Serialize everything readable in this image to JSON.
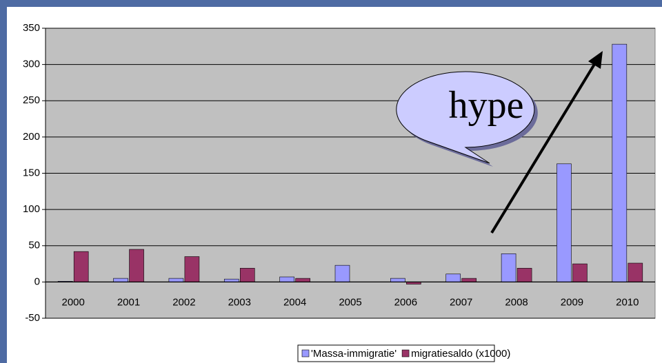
{
  "chart_data": {
    "type": "bar",
    "categories": [
      "2000",
      "2001",
      "2002",
      "2003",
      "2004",
      "2005",
      "2006",
      "2007",
      "2008",
      "2009",
      "2010"
    ],
    "series": [
      {
        "name": "'Massa-immigratie'",
        "color": "#9999ff",
        "values": [
          1,
          5,
          5,
          4,
          7,
          23,
          5,
          11,
          39,
          163,
          328
        ]
      },
      {
        "name": "migratiesaldo (x1000)",
        "color": "#993366",
        "values": [
          42,
          45,
          35,
          19,
          5,
          0,
          -3,
          5,
          19,
          25,
          26
        ]
      }
    ],
    "ylim": [
      -50,
      350
    ],
    "yticks": [
      -50,
      0,
      50,
      100,
      150,
      200,
      250,
      300,
      350
    ],
    "grid": true,
    "legend": "bottom",
    "plot_background": "#c0c0c0",
    "annotation": "hype"
  }
}
